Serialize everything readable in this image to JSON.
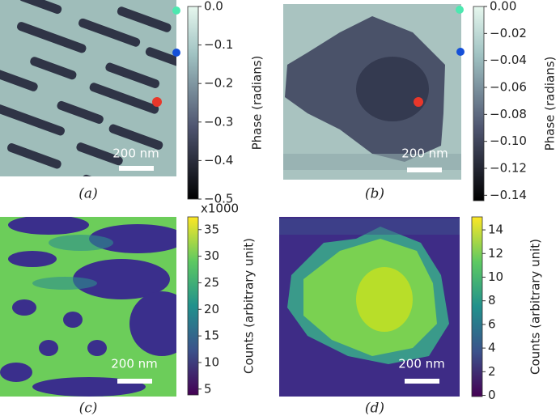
{
  "panels": [
    {
      "label": "(a)",
      "scale_bar": "200 nm",
      "colorbar": {
        "label": "Phase (radians)",
        "ylim": [
          -0.5,
          0
        ],
        "yticks": [
          {
            "value": 0,
            "label": "0.0"
          },
          {
            "value": -0.1,
            "label": "−0.1"
          },
          {
            "value": -0.2,
            "label": "−0.2"
          },
          {
            "value": -0.3,
            "label": "−0.3"
          },
          {
            "value": -0.4,
            "label": "−0.4"
          },
          {
            "value": -0.5,
            "label": "−0.5"
          }
        ]
      }
    },
    {
      "label": "(b)",
      "scale_bar": "200 nm",
      "colorbar": {
        "label": "Phase (radians)",
        "ylim": [
          -0.144,
          0
        ],
        "yticks": [
          {
            "value": 0,
            "label": "0.00"
          },
          {
            "value": -0.02,
            "label": "−0.02"
          },
          {
            "value": -0.04,
            "label": "−0.04"
          },
          {
            "value": -0.06,
            "label": "−0.06"
          },
          {
            "value": -0.08,
            "label": "−0.08"
          },
          {
            "value": -0.1,
            "label": "−0.10"
          },
          {
            "value": -0.12,
            "label": "−0.12"
          },
          {
            "value": -0.14,
            "label": "−0.14"
          }
        ]
      }
    },
    {
      "label": "(c)",
      "scale_bar": "200 nm",
      "colorbar": {
        "label": "Counts (arbitrary unit)",
        "multiplier": "x1000",
        "ylim": [
          3.9,
          37.4
        ],
        "yticks": [
          5,
          10,
          15,
          20,
          25,
          30,
          35
        ]
      }
    },
    {
      "label": "(d)",
      "scale_bar": "200 nm",
      "colorbar": {
        "label": "Counts (arbitrary unit)",
        "ylim": [
          -0.1,
          15.1
        ],
        "yticks": [
          0,
          2,
          4,
          6,
          8,
          10,
          12,
          14
        ]
      }
    }
  ]
}
